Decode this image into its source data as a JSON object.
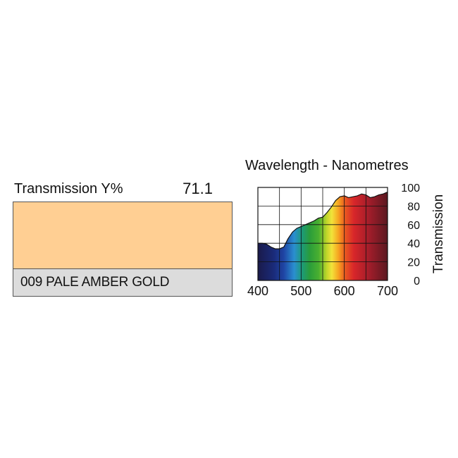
{
  "transmission": {
    "label": "Transmission Y%",
    "value": "71.1"
  },
  "filter": {
    "name": "009 PALE AMBER GOLD",
    "swatch_color": "#ffcf93",
    "strip_color": "#dcdcdc"
  },
  "chart_data": {
    "type": "area",
    "title": "Wavelength - Nanometres",
    "xlabel": "",
    "ylabel": "Transmission",
    "xlim": [
      400,
      700
    ],
    "ylim": [
      0,
      100
    ],
    "x_ticks": [
      "400",
      "500",
      "600",
      "700"
    ],
    "y_ticks": [
      "100",
      "80",
      "60",
      "40",
      "20",
      "0"
    ],
    "grid": true,
    "fill": "visible-spectrum gradient",
    "series": [
      {
        "x": [
          400,
          410,
          420,
          430,
          440,
          450,
          460,
          470,
          480,
          490,
          500,
          510,
          520,
          530,
          540,
          550,
          560,
          570,
          580,
          590,
          600,
          610,
          620,
          630,
          640,
          650,
          660,
          670,
          680,
          690,
          700
        ],
        "y": [
          40,
          40,
          39,
          36,
          34,
          34,
          36,
          45,
          52,
          56,
          58,
          60,
          62,
          64,
          67,
          68,
          73,
          79,
          86,
          90,
          91,
          89,
          90,
          91,
          93,
          92,
          89,
          90,
          92,
          93,
          95
        ]
      }
    ]
  }
}
